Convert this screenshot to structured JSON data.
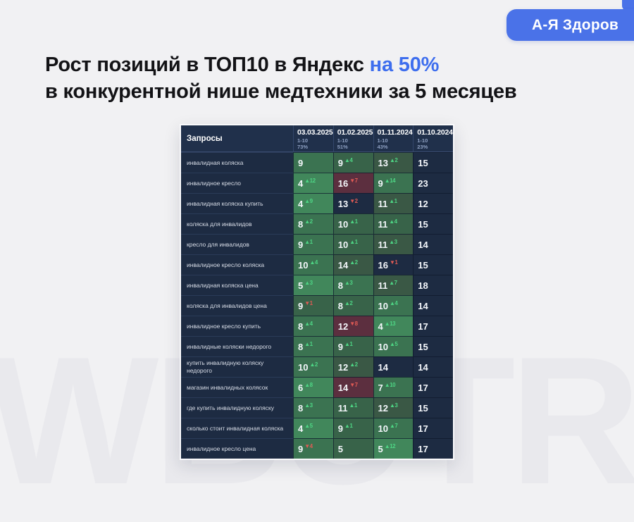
{
  "badge": {
    "label": "А-Я Здоров",
    "color": "#4a72e8"
  },
  "title": {
    "line1_black": "Рост позиций в ТОП10 в Яндекс ",
    "line1_blue": "на 50%",
    "line2": "в конкурентной нише медтехники за 5 месяцев",
    "accent_color": "#3e6eee"
  },
  "watermark": "WBUTR",
  "colors": {
    "page_bg": "#f1f1f3",
    "table_navy": "#1d2b42",
    "header_navy": "#20304b",
    "green_bright": "#41875b",
    "green_medium": "#3b7351",
    "green_dark": "#386349",
    "green_olive": "#3a5845",
    "red_cell": "#5c2f3f",
    "delta_up": "#4ed584",
    "delta_down": "#e25b55"
  },
  "table": {
    "query_header": "Запросы",
    "columns": [
      {
        "date": "03.03.2025",
        "range": "1-10",
        "percent": "73%"
      },
      {
        "date": "01.02.2025",
        "range": "1-10",
        "percent": "51%"
      },
      {
        "date": "01.11.2024",
        "range": "1-10",
        "percent": "43%"
      },
      {
        "date": "01.10.2024",
        "range": "1-10",
        "percent": "23%"
      }
    ],
    "rows": [
      {
        "query": "инвалидная коляска",
        "cells": [
          {
            "v": "9",
            "d": "",
            "dir": "",
            "bg": "g2"
          },
          {
            "v": "9",
            "d": "4",
            "dir": "up",
            "bg": "g3"
          },
          {
            "v": "13",
            "d": "2",
            "dir": "up",
            "bg": "g4"
          },
          {
            "v": "15",
            "d": "",
            "dir": "",
            "bg": "n"
          }
        ]
      },
      {
        "query": "инвалидное кресло",
        "cells": [
          {
            "v": "4",
            "d": "12",
            "dir": "up",
            "bg": "g1"
          },
          {
            "v": "16",
            "d": "7",
            "dir": "down",
            "bg": "red"
          },
          {
            "v": "9",
            "d": "14",
            "dir": "up",
            "bg": "g2"
          },
          {
            "v": "23",
            "d": "",
            "dir": "",
            "bg": "n"
          }
        ]
      },
      {
        "query": "инвалидная коляска купить",
        "cells": [
          {
            "v": "4",
            "d": "9",
            "dir": "up",
            "bg": "g1"
          },
          {
            "v": "13",
            "d": "2",
            "dir": "down",
            "bg": "n"
          },
          {
            "v": "11",
            "d": "1",
            "dir": "up",
            "bg": "g4"
          },
          {
            "v": "12",
            "d": "",
            "dir": "",
            "bg": "n"
          }
        ]
      },
      {
        "query": "коляска для инвалидов",
        "cells": [
          {
            "v": "8",
            "d": "2",
            "dir": "up",
            "bg": "g2"
          },
          {
            "v": "10",
            "d": "1",
            "dir": "up",
            "bg": "g3"
          },
          {
            "v": "11",
            "d": "4",
            "dir": "up",
            "bg": "g3"
          },
          {
            "v": "15",
            "d": "",
            "dir": "",
            "bg": "n"
          }
        ]
      },
      {
        "query": "кресло для инвалидов",
        "cells": [
          {
            "v": "9",
            "d": "1",
            "dir": "up",
            "bg": "g2"
          },
          {
            "v": "10",
            "d": "1",
            "dir": "up",
            "bg": "g3"
          },
          {
            "v": "11",
            "d": "3",
            "dir": "up",
            "bg": "g4"
          },
          {
            "v": "14",
            "d": "",
            "dir": "",
            "bg": "n"
          }
        ]
      },
      {
        "query": "инвалидное кресло коляска",
        "cells": [
          {
            "v": "10",
            "d": "4",
            "dir": "up",
            "bg": "g2"
          },
          {
            "v": "14",
            "d": "2",
            "dir": "up",
            "bg": "g4"
          },
          {
            "v": "16",
            "d": "1",
            "dir": "down",
            "bg": "n"
          },
          {
            "v": "15",
            "d": "",
            "dir": "",
            "bg": "n"
          }
        ]
      },
      {
        "query": "инвалидная коляска цена",
        "cells": [
          {
            "v": "5",
            "d": "3",
            "dir": "up",
            "bg": "g1"
          },
          {
            "v": "8",
            "d": "3",
            "dir": "up",
            "bg": "g2"
          },
          {
            "v": "11",
            "d": "7",
            "dir": "up",
            "bg": "g4"
          },
          {
            "v": "18",
            "d": "",
            "dir": "",
            "bg": "n"
          }
        ]
      },
      {
        "query": "коляска для инвалидов цена",
        "cells": [
          {
            "v": "9",
            "d": "1",
            "dir": "down",
            "bg": "g3"
          },
          {
            "v": "8",
            "d": "2",
            "dir": "up",
            "bg": "g3"
          },
          {
            "v": "10",
            "d": "4",
            "dir": "up",
            "bg": "g2"
          },
          {
            "v": "14",
            "d": "",
            "dir": "",
            "bg": "n"
          }
        ]
      },
      {
        "query": "инвалидное кресло купить",
        "cells": [
          {
            "v": "8",
            "d": "4",
            "dir": "up",
            "bg": "g2"
          },
          {
            "v": "12",
            "d": "8",
            "dir": "down",
            "bg": "red"
          },
          {
            "v": "4",
            "d": "13",
            "dir": "up",
            "bg": "g1"
          },
          {
            "v": "17",
            "d": "",
            "dir": "",
            "bg": "n"
          }
        ]
      },
      {
        "query": "инвалидные коляски недорого",
        "cells": [
          {
            "v": "8",
            "d": "1",
            "dir": "up",
            "bg": "g2"
          },
          {
            "v": "9",
            "d": "1",
            "dir": "up",
            "bg": "g3"
          },
          {
            "v": "10",
            "d": "5",
            "dir": "up",
            "bg": "g2"
          },
          {
            "v": "15",
            "d": "",
            "dir": "",
            "bg": "n"
          }
        ]
      },
      {
        "query": "купить инвалидную коляску недорого",
        "cells": [
          {
            "v": "10",
            "d": "2",
            "dir": "up",
            "bg": "g2"
          },
          {
            "v": "12",
            "d": "2",
            "dir": "up",
            "bg": "g4"
          },
          {
            "v": "14",
            "d": "",
            "dir": "",
            "bg": "n"
          },
          {
            "v": "14",
            "d": "",
            "dir": "",
            "bg": "n"
          }
        ]
      },
      {
        "query": "магазин инвалидных колясок",
        "cells": [
          {
            "v": "6",
            "d": "8",
            "dir": "up",
            "bg": "g1"
          },
          {
            "v": "14",
            "d": "7",
            "dir": "down",
            "bg": "red"
          },
          {
            "v": "7",
            "d": "10",
            "dir": "up",
            "bg": "g2"
          },
          {
            "v": "17",
            "d": "",
            "dir": "",
            "bg": "n"
          }
        ]
      },
      {
        "query": "где купить инвалидную коляску",
        "cells": [
          {
            "v": "8",
            "d": "3",
            "dir": "up",
            "bg": "g2"
          },
          {
            "v": "11",
            "d": "1",
            "dir": "up",
            "bg": "g3"
          },
          {
            "v": "12",
            "d": "3",
            "dir": "up",
            "bg": "g4"
          },
          {
            "v": "15",
            "d": "",
            "dir": "",
            "bg": "n"
          }
        ]
      },
      {
        "query": "сколько стоит инвалидная коляска",
        "cells": [
          {
            "v": "4",
            "d": "5",
            "dir": "up",
            "bg": "g1"
          },
          {
            "v": "9",
            "d": "1",
            "dir": "up",
            "bg": "g3"
          },
          {
            "v": "10",
            "d": "7",
            "dir": "up",
            "bg": "g2"
          },
          {
            "v": "17",
            "d": "",
            "dir": "",
            "bg": "n"
          }
        ]
      },
      {
        "query": "инвалидное кресло цена",
        "cells": [
          {
            "v": "9",
            "d": "4",
            "dir": "down",
            "bg": "g2"
          },
          {
            "v": "5",
            "d": "",
            "dir": "",
            "bg": "g3"
          },
          {
            "v": "5",
            "d": "12",
            "dir": "up",
            "bg": "g1"
          },
          {
            "v": "17",
            "d": "",
            "dir": "",
            "bg": "n"
          }
        ]
      }
    ]
  }
}
